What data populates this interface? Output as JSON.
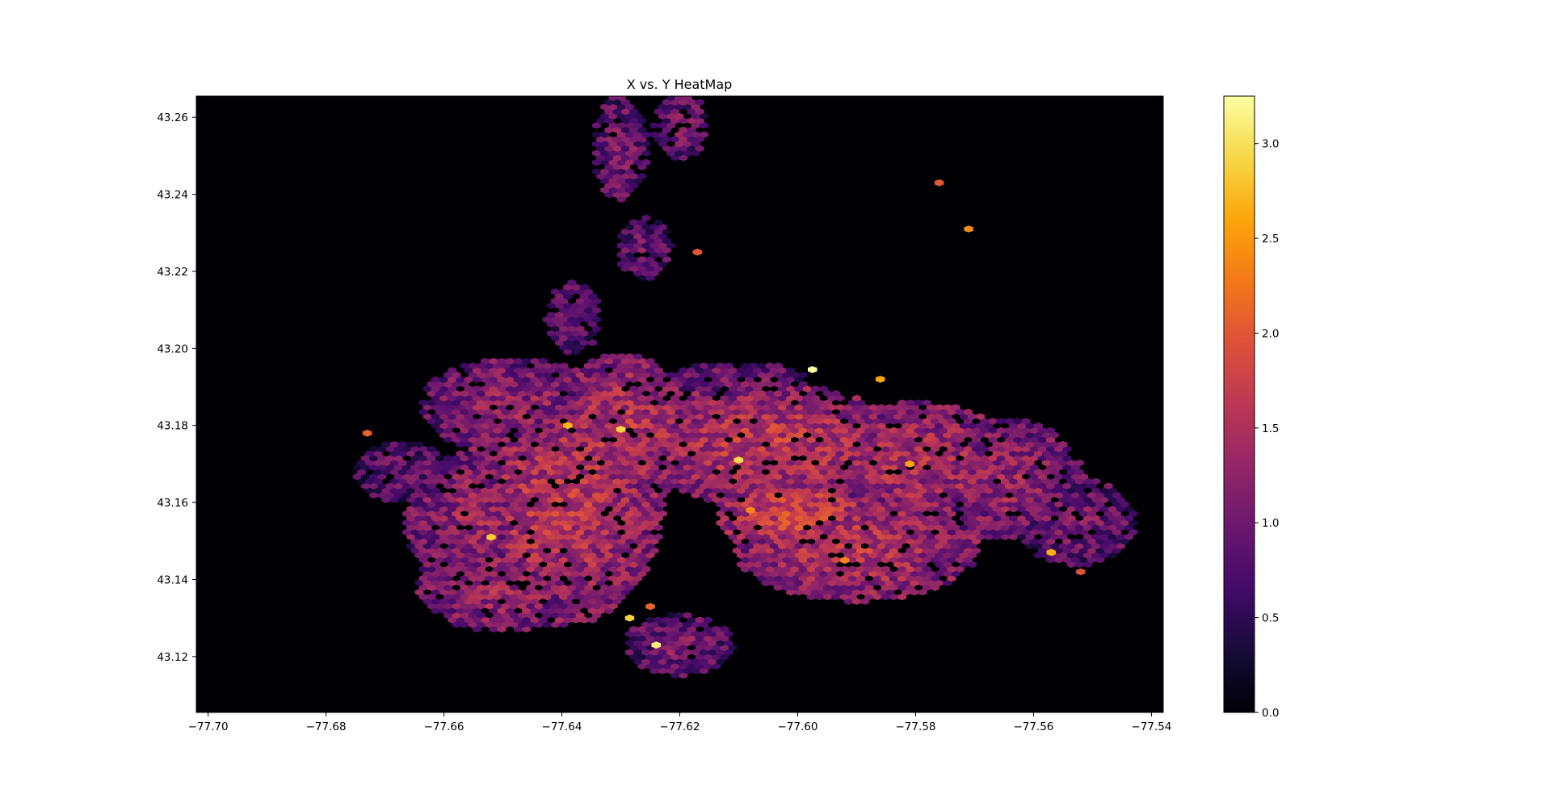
{
  "chart_data": {
    "type": "heatmap",
    "subtype": "hexbin",
    "title": "X vs. Y HeatMap",
    "xlabel": "",
    "ylabel": "",
    "xlim": [
      -77.702,
      -77.538
    ],
    "ylim": [
      43.1055,
      43.2655
    ],
    "xticks": [
      {
        "value": -77.7,
        "label": "−77.70"
      },
      {
        "value": -77.68,
        "label": "−77.68"
      },
      {
        "value": -77.66,
        "label": "−77.66"
      },
      {
        "value": -77.64,
        "label": "−77.64"
      },
      {
        "value": -77.62,
        "label": "−77.62"
      },
      {
        "value": -77.6,
        "label": "−77.60"
      },
      {
        "value": -77.58,
        "label": "−77.58"
      },
      {
        "value": -77.56,
        "label": "−77.56"
      },
      {
        "value": -77.54,
        "label": "−77.54"
      }
    ],
    "yticks": [
      {
        "value": 43.12,
        "label": "43.12"
      },
      {
        "value": 43.14,
        "label": "43.14"
      },
      {
        "value": 43.16,
        "label": "43.16"
      },
      {
        "value": 43.18,
        "label": "43.18"
      },
      {
        "value": 43.2,
        "label": "43.20"
      },
      {
        "value": 43.22,
        "label": "43.22"
      },
      {
        "value": 43.24,
        "label": "43.24"
      },
      {
        "value": 43.26,
        "label": "43.26"
      }
    ],
    "colorbar": {
      "colormap": "inferno",
      "range": [
        0.0,
        3.25
      ],
      "ticks": [
        {
          "value": 0.0,
          "label": "0.0"
        },
        {
          "value": 0.5,
          "label": "0.5"
        },
        {
          "value": 1.0,
          "label": "1.0"
        },
        {
          "value": 1.5,
          "label": "1.5"
        },
        {
          "value": 2.0,
          "label": "2.0"
        },
        {
          "value": 2.5,
          "label": "2.5"
        },
        {
          "value": 3.0,
          "label": "3.0"
        }
      ]
    },
    "background_color": "#000004",
    "density_regions": [
      {
        "x": -77.64,
        "y": 43.16,
        "rx": 0.015,
        "ry": 0.028,
        "value": 1.55
      },
      {
        "x": -77.63,
        "y": 43.178,
        "rx": 0.011,
        "ry": 0.018,
        "value": 1.55
      },
      {
        "x": -77.648,
        "y": 43.185,
        "rx": 0.014,
        "ry": 0.011,
        "value": 1.25
      },
      {
        "x": -77.655,
        "y": 43.155,
        "rx": 0.01,
        "ry": 0.016,
        "value": 1.3
      },
      {
        "x": -77.65,
        "y": 43.138,
        "rx": 0.013,
        "ry": 0.01,
        "value": 1.35
      },
      {
        "x": -77.667,
        "y": 43.168,
        "rx": 0.007,
        "ry": 0.007,
        "value": 0.9
      },
      {
        "x": -77.638,
        "y": 43.208,
        "rx": 0.004,
        "ry": 0.008,
        "value": 0.95
      },
      {
        "x": -77.63,
        "y": 43.252,
        "rx": 0.004,
        "ry": 0.012,
        "value": 1.05
      },
      {
        "x": -77.62,
        "y": 43.258,
        "rx": 0.004,
        "ry": 0.008,
        "value": 1.05
      },
      {
        "x": -77.626,
        "y": 43.226,
        "rx": 0.004,
        "ry": 0.007,
        "value": 0.95
      },
      {
        "x": -77.605,
        "y": 43.175,
        "rx": 0.02,
        "ry": 0.014,
        "value": 1.6
      },
      {
        "x": -77.6,
        "y": 43.157,
        "rx": 0.012,
        "ry": 0.009,
        "value": 1.75
      },
      {
        "x": -77.59,
        "y": 43.148,
        "rx": 0.018,
        "ry": 0.012,
        "value": 1.55
      },
      {
        "x": -77.58,
        "y": 43.17,
        "rx": 0.016,
        "ry": 0.014,
        "value": 1.45
      },
      {
        "x": -77.565,
        "y": 43.166,
        "rx": 0.012,
        "ry": 0.014,
        "value": 1.3
      },
      {
        "x": -77.553,
        "y": 43.155,
        "rx": 0.009,
        "ry": 0.01,
        "value": 1.05
      },
      {
        "x": -77.62,
        "y": 43.123,
        "rx": 0.008,
        "ry": 0.007,
        "value": 1.05
      },
      {
        "x": -77.61,
        "y": 43.192,
        "rx": 0.01,
        "ry": 0.004,
        "value": 1.05
      }
    ],
    "hotspots": [
      {
        "x": -77.5975,
        "y": 43.1945,
        "value": 3.25
      },
      {
        "x": -77.624,
        "y": 43.123,
        "value": 3.1
      },
      {
        "x": -77.6285,
        "y": 43.13,
        "value": 2.9
      },
      {
        "x": -77.652,
        "y": 43.151,
        "value": 2.85
      },
      {
        "x": -77.63,
        "y": 43.179,
        "value": 2.9
      },
      {
        "x": -77.61,
        "y": 43.171,
        "value": 2.95
      },
      {
        "x": -77.557,
        "y": 43.147,
        "value": 2.65
      },
      {
        "x": -77.639,
        "y": 43.18,
        "value": 2.7
      },
      {
        "x": -77.581,
        "y": 43.17,
        "value": 2.6
      },
      {
        "x": -77.586,
        "y": 43.192,
        "value": 2.6
      },
      {
        "x": -77.571,
        "y": 43.231,
        "value": 2.4
      },
      {
        "x": -77.608,
        "y": 43.158,
        "value": 2.4
      },
      {
        "x": -77.592,
        "y": 43.145,
        "value": 2.35
      },
      {
        "x": -77.673,
        "y": 43.178,
        "value": 2.1
      },
      {
        "x": -77.576,
        "y": 43.243,
        "value": 2.0
      },
      {
        "x": -77.617,
        "y": 43.225,
        "value": 2.0
      },
      {
        "x": -77.552,
        "y": 43.142,
        "value": 1.95
      },
      {
        "x": -77.625,
        "y": 43.133,
        "value": 2.1
      }
    ]
  }
}
